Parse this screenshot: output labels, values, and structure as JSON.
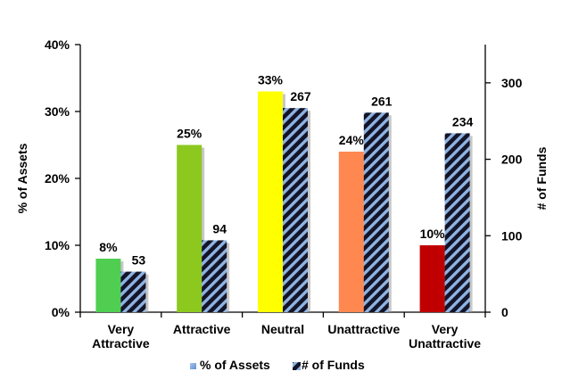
{
  "chart_data": {
    "type": "bar",
    "categories": [
      [
        "Very",
        "Attractive"
      ],
      [
        "Attractive"
      ],
      [
        "Neutral"
      ],
      [
        "Unattractive"
      ],
      [
        "Very",
        "Unattractive"
      ]
    ],
    "series": [
      {
        "name": "% of Assets",
        "axis": "left",
        "values": [
          8,
          25,
          33,
          24,
          10
        ],
        "labels": [
          "8%",
          "25%",
          "33%",
          "24%",
          "10%"
        ],
        "colors": [
          "#4fce52",
          "#8cc81e",
          "#ffff00",
          "#ff8850",
          "#c00000"
        ]
      },
      {
        "name": "# of Funds",
        "axis": "right",
        "values": [
          53,
          94,
          267,
          261,
          234
        ],
        "labels": [
          "53",
          "94",
          "267",
          "261",
          "234"
        ],
        "colors": [
          "#1a1a2e"
        ],
        "stripe_color": "#8fb4e3"
      }
    ],
    "y_left": {
      "label": "% of Assets",
      "ylim": [
        0,
        40
      ],
      "ticks": [
        "0%",
        "10%",
        "20%",
        "30%",
        "40%"
      ]
    },
    "y_right": {
      "label": "# of Funds",
      "ylim": [
        0,
        350
      ],
      "ticks": [
        "0",
        "100",
        "200",
        "300"
      ]
    },
    "legend": {
      "placement": "bottom",
      "entries": [
        "% of Assets",
        "# of Funds"
      ]
    },
    "grid": false
  }
}
